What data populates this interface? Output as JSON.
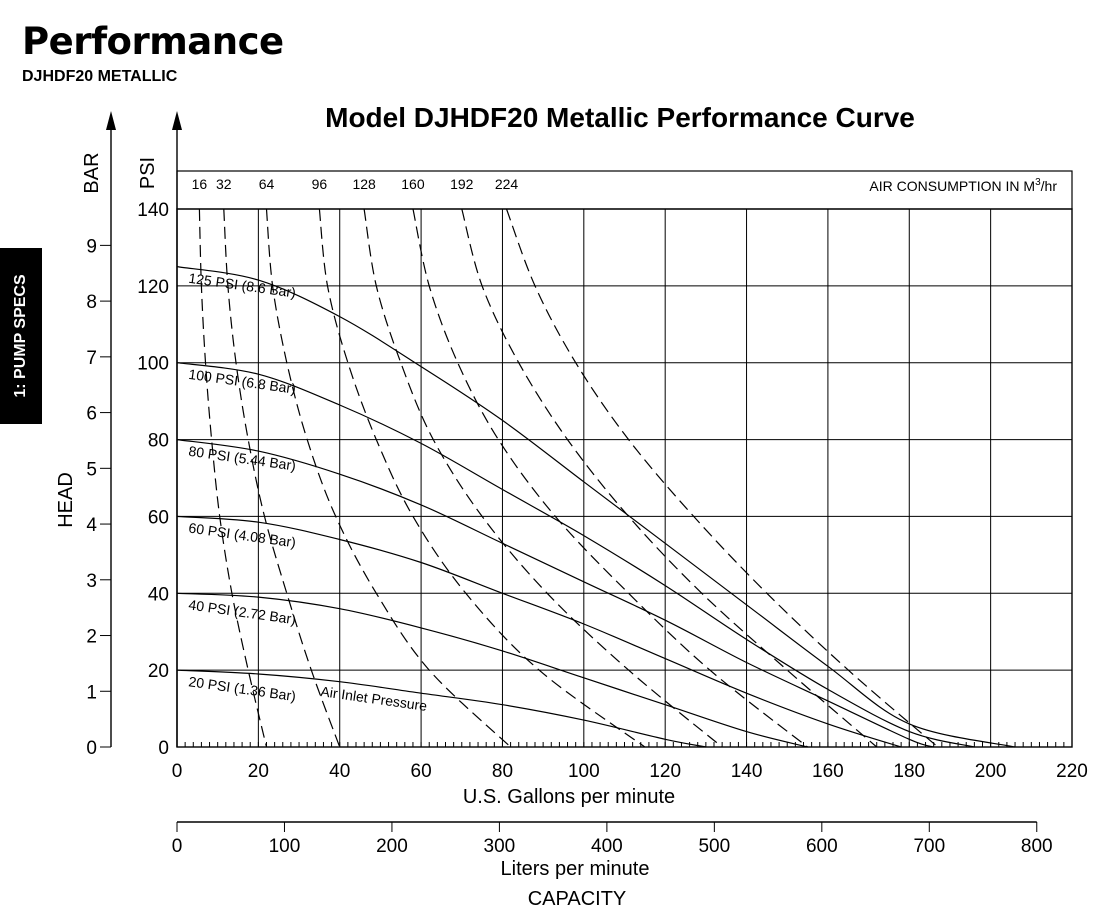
{
  "header": {
    "title": "Performance",
    "subtitle": "DJHDF20 METALLIC"
  },
  "side_tab": {
    "label": "1: PUMP SPECS"
  },
  "chart_data": {
    "type": "line",
    "title": "Model DJHDF20 Metallic Performance Curve",
    "xlabel": "U.S. Gallons per minute",
    "x2label": "Liters per minute",
    "x_caption": "CAPACITY",
    "ylabel": "HEAD",
    "y_unit_left": "BAR",
    "y_unit_right": "PSI",
    "xlim": [
      0,
      220
    ],
    "ylim": [
      0,
      140
    ],
    "x_ticks": [
      0,
      20,
      40,
      60,
      80,
      100,
      120,
      140,
      160,
      180,
      200,
      220
    ],
    "y_ticks": [
      0,
      20,
      40,
      60,
      80,
      100,
      120,
      140
    ],
    "bar_ticks": [
      0,
      1,
      2,
      3,
      4,
      5,
      6,
      7,
      8,
      9
    ],
    "lpm_ticks": [
      0,
      100,
      200,
      300,
      400,
      500,
      600,
      700,
      800
    ],
    "grid": true,
    "air_consumption": {
      "label": "AIR CONSUMPTION IN M³/hr",
      "label_main": "AIR CONSUMPTION IN M",
      "label_sup": "3",
      "label_tail": "/hr",
      "values": [
        "16",
        "32",
        "64",
        "96",
        "128",
        "160",
        "192",
        "224"
      ]
    },
    "pressure_curves": [
      {
        "label": "125 PSI (8.6 Bar)",
        "points": [
          [
            0,
            125
          ],
          [
            20,
            121.5
          ],
          [
            40,
            112
          ],
          [
            60,
            99
          ],
          [
            80,
            85
          ],
          [
            100,
            69
          ],
          [
            120,
            53
          ],
          [
            140,
            37
          ],
          [
            160,
            21
          ],
          [
            180,
            6
          ],
          [
            206,
            0
          ]
        ]
      },
      {
        "label": "100 PSI (6.8 Bar)",
        "points": [
          [
            0,
            100
          ],
          [
            20,
            97
          ],
          [
            40,
            89
          ],
          [
            60,
            79
          ],
          [
            80,
            67
          ],
          [
            100,
            55
          ],
          [
            120,
            42
          ],
          [
            140,
            28
          ],
          [
            160,
            15
          ],
          [
            180,
            4
          ],
          [
            196,
            0
          ]
        ]
      },
      {
        "label": "80 PSI (5.44 Bar)",
        "points": [
          [
            0,
            80
          ],
          [
            20,
            77
          ],
          [
            40,
            71
          ],
          [
            60,
            63
          ],
          [
            80,
            53
          ],
          [
            100,
            43
          ],
          [
            120,
            33
          ],
          [
            140,
            22
          ],
          [
            160,
            12
          ],
          [
            180,
            2
          ],
          [
            186,
            0
          ]
        ]
      },
      {
        "label": "60 PSI (4.08 Bar)",
        "points": [
          [
            0,
            60
          ],
          [
            20,
            58.5
          ],
          [
            40,
            54
          ],
          [
            60,
            48
          ],
          [
            80,
            40
          ],
          [
            100,
            32
          ],
          [
            120,
            23
          ],
          [
            140,
            14
          ],
          [
            160,
            6
          ],
          [
            178,
            0
          ]
        ]
      },
      {
        "label": "40 PSI (2.72 Bar)",
        "points": [
          [
            0,
            40
          ],
          [
            20,
            39
          ],
          [
            40,
            36
          ],
          [
            60,
            31
          ],
          [
            80,
            25
          ],
          [
            100,
            18
          ],
          [
            120,
            11
          ],
          [
            140,
            4
          ],
          [
            155,
            0
          ]
        ]
      },
      {
        "label": "20 PSI (1.36 Bar)",
        "points": [
          [
            0,
            20
          ],
          [
            20,
            19
          ],
          [
            40,
            17
          ],
          [
            60,
            14
          ],
          [
            80,
            11
          ],
          [
            100,
            7
          ],
          [
            120,
            2
          ],
          [
            130,
            0
          ]
        ]
      }
    ],
    "inlet_label": "Air Inlet Pressure",
    "air_curves": [
      {
        "name": "16",
        "points": [
          [
            5.5,
            140
          ],
          [
            6,
            120
          ],
          [
            7,
            100
          ],
          [
            8.5,
            80
          ],
          [
            10.5,
            60
          ],
          [
            13.5,
            40
          ],
          [
            17.5,
            20
          ],
          [
            22,
            0
          ]
        ]
      },
      {
        "name": "32",
        "points": [
          [
            11.5,
            140
          ],
          [
            12.5,
            120
          ],
          [
            14.5,
            100
          ],
          [
            17.5,
            80
          ],
          [
            21.5,
            60
          ],
          [
            27,
            40
          ],
          [
            33,
            20
          ],
          [
            40,
            0
          ]
        ]
      },
      {
        "name": "64",
        "points": [
          [
            22,
            140
          ],
          [
            23.5,
            120
          ],
          [
            27,
            100
          ],
          [
            32,
            80
          ],
          [
            39,
            60
          ],
          [
            49,
            40
          ],
          [
            62,
            20
          ],
          [
            82,
            0
          ]
        ]
      },
      {
        "name": "96",
        "points": [
          [
            35,
            140
          ],
          [
            37,
            120
          ],
          [
            42,
            100
          ],
          [
            49,
            80
          ],
          [
            58,
            60
          ],
          [
            71,
            40
          ],
          [
            89,
            20
          ],
          [
            115,
            0
          ]
        ]
      },
      {
        "name": "128",
        "points": [
          [
            46,
            140
          ],
          [
            49,
            120
          ],
          [
            55,
            100
          ],
          [
            63,
            80
          ],
          [
            75,
            60
          ],
          [
            91,
            40
          ],
          [
            111,
            20
          ],
          [
            134,
            0
          ]
        ]
      },
      {
        "name": "160",
        "points": [
          [
            58,
            140
          ],
          [
            62,
            120
          ],
          [
            69,
            100
          ],
          [
            79,
            80
          ],
          [
            93,
            60
          ],
          [
            111,
            40
          ],
          [
            131,
            20
          ],
          [
            155,
            0
          ]
        ]
      },
      {
        "name": "192",
        "points": [
          [
            70,
            140
          ],
          [
            75,
            120
          ],
          [
            84,
            100
          ],
          [
            96,
            80
          ],
          [
            111,
            60
          ],
          [
            129,
            40
          ],
          [
            150,
            20
          ],
          [
            172,
            0
          ]
        ]
      },
      {
        "name": "224",
        "points": [
          [
            81,
            140
          ],
          [
            88,
            120
          ],
          [
            98,
            100
          ],
          [
            111,
            80
          ],
          [
            127,
            60
          ],
          [
            145,
            40
          ],
          [
            165,
            20
          ],
          [
            187,
            0
          ]
        ]
      }
    ]
  }
}
